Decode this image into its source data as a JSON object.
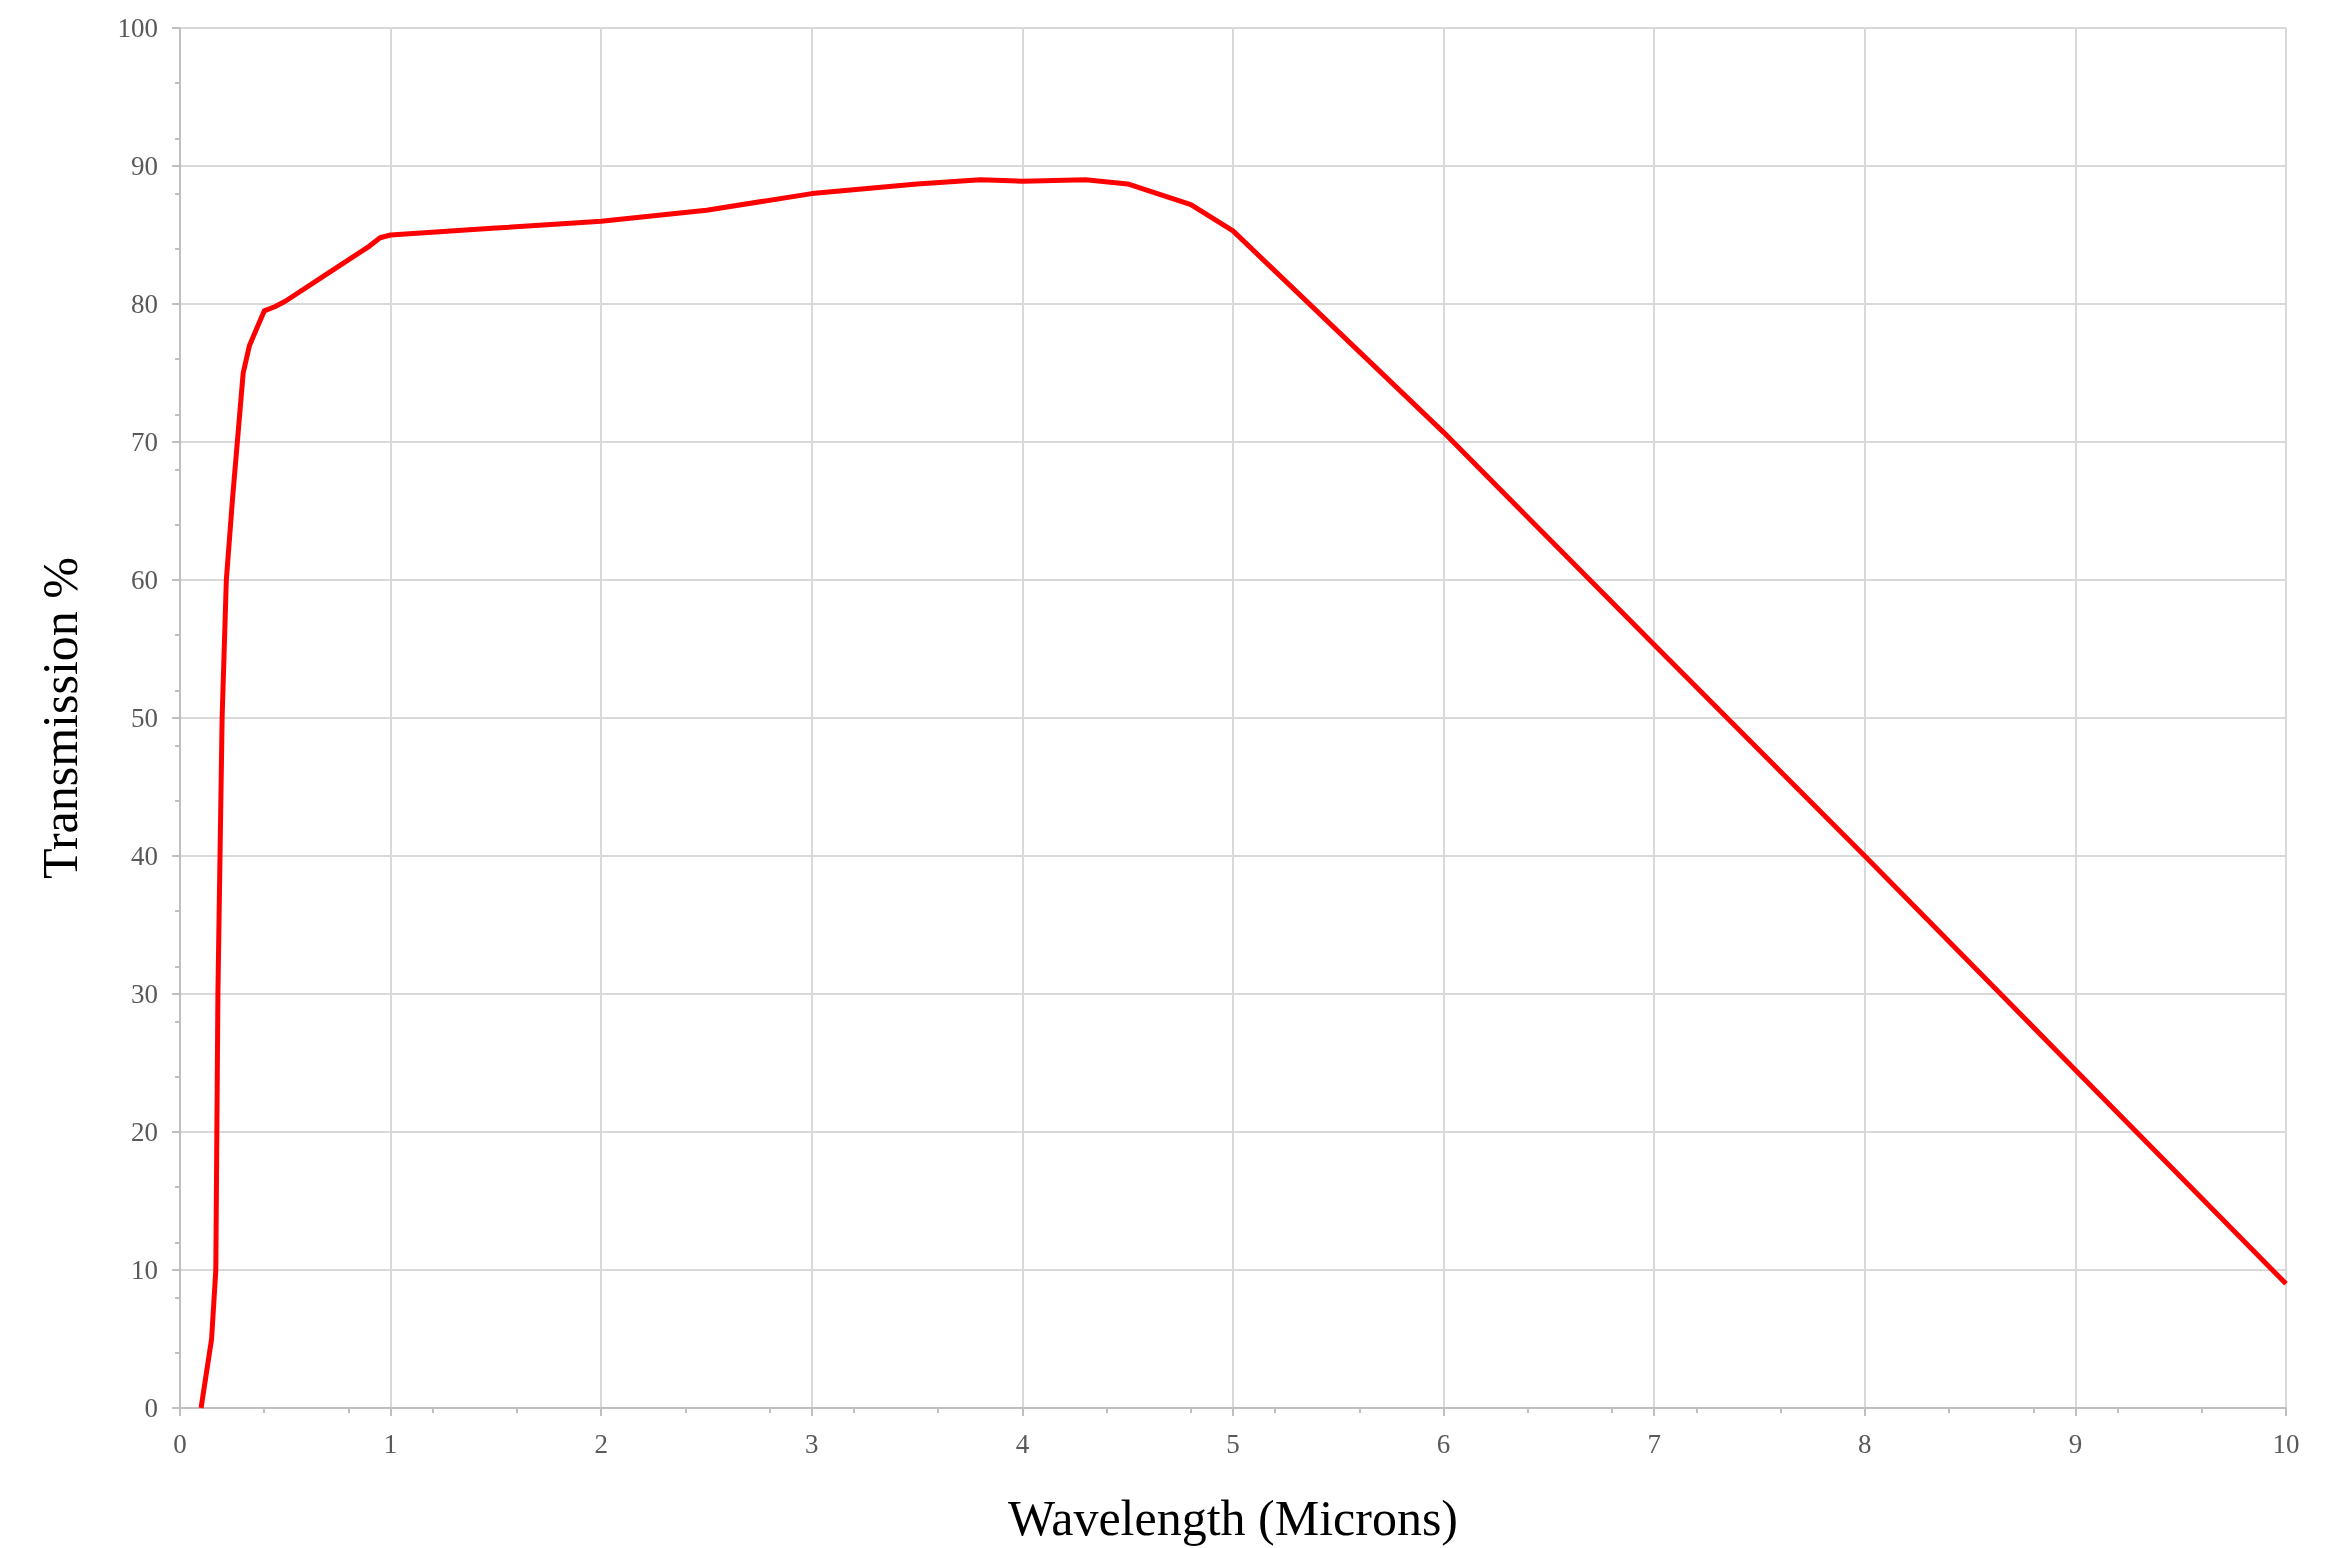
{
  "chart_data": {
    "type": "line",
    "xlabel": "Wavelength (Microns)",
    "ylabel": "Transmission %",
    "x": [
      0.1,
      0.15,
      0.17,
      0.18,
      0.19,
      0.2,
      0.22,
      0.25,
      0.3,
      0.33,
      0.4,
      0.45,
      0.5,
      0.7,
      0.9,
      0.95,
      1.0,
      1.5,
      2,
      2.5,
      3,
      3.5,
      3.8,
      4.0,
      4.3,
      4.5,
      4.8,
      5,
      5.5,
      6,
      7,
      8,
      9,
      10
    ],
    "series": [
      {
        "color": "#ff0000",
        "values": [
          0,
          5,
          10,
          30,
          40,
          50,
          60,
          66,
          75,
          77,
          79.5,
          79.8,
          80.2,
          82.2,
          84.2,
          84.8,
          85,
          85.5,
          86,
          86.8,
          88,
          88.7,
          89,
          88.9,
          89,
          88.7,
          87.2,
          85.3,
          78,
          70.7,
          55.3,
          40,
          24.5,
          9
        ]
      }
    ],
    "xlim": [
      0,
      10
    ],
    "xticks": [
      0,
      1,
      2,
      3,
      4,
      5,
      6,
      7,
      8,
      9,
      10
    ],
    "ylim": [
      0,
      100
    ],
    "yticks": [
      0,
      10,
      20,
      30,
      40,
      50,
      60,
      70,
      80,
      90,
      100
    ],
    "grid": true,
    "marker": "none",
    "line_style": "solid"
  }
}
